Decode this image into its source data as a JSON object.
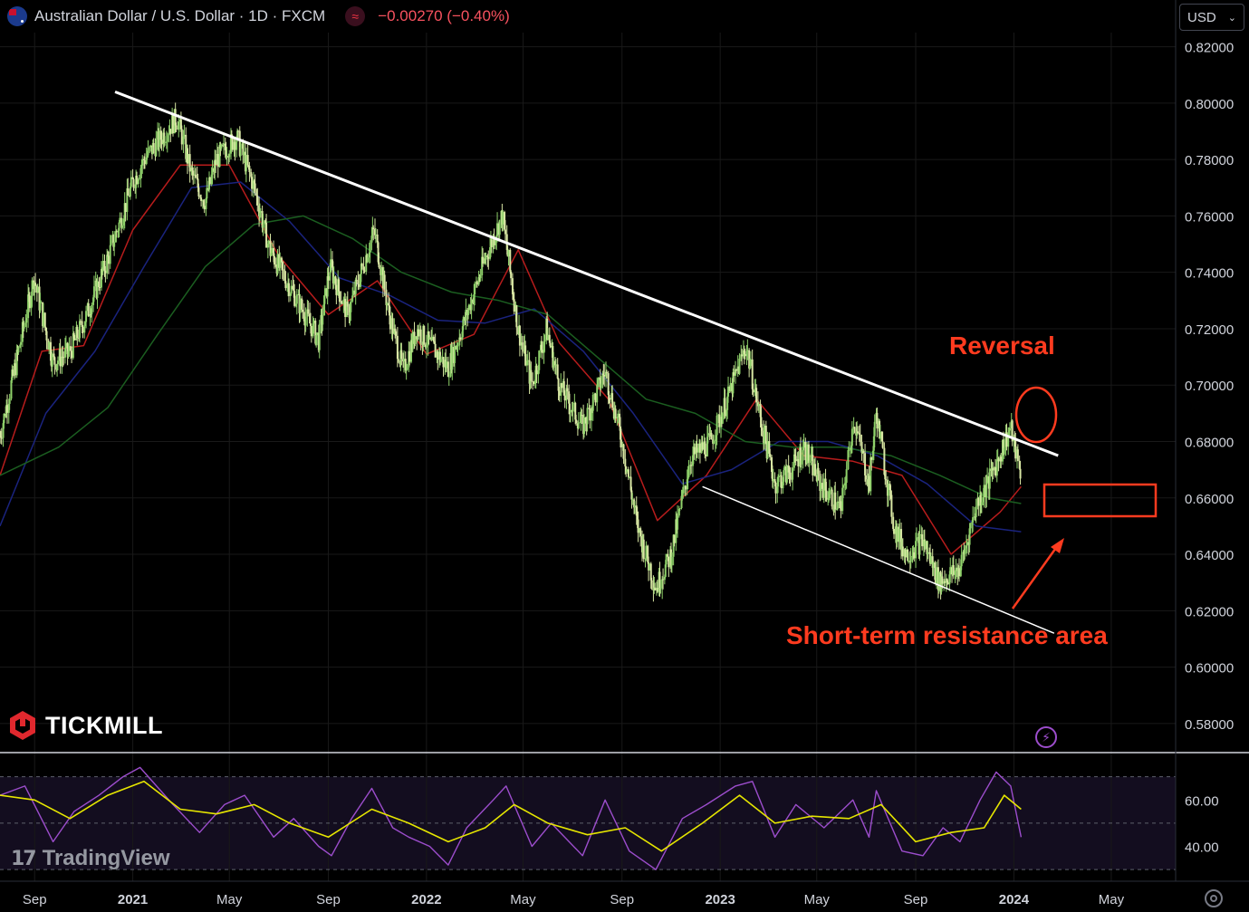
{
  "header": {
    "symbol_title": "Australian Dollar / U.S. Dollar · 1D · FXCM",
    "change": "−0.00270 (−0.40%)",
    "currency": "USD",
    "indicator_icon": "waves-icon",
    "flag_icon": "australia-flag-icon"
  },
  "branding": {
    "broker": "TICKMILL",
    "platform": "TradingView"
  },
  "annotations": {
    "reversal": "Reversal",
    "resistance": "Short-term resistance area"
  },
  "colors": {
    "background": "#000000",
    "candles": "#d9e7a4",
    "candle_alt": "#8fd16a",
    "ma_fast": "#b71c1c",
    "ma_mid": "#1a237e",
    "ma_slow": "#1b5e20",
    "rsi_line": "#9c4dcc",
    "rsi_signal": "#e6e600",
    "annotation": "#ff3b1f",
    "trendline": "#ffffff"
  },
  "chart_data": [
    {
      "type": "line",
      "ylim": [
        0.57,
        0.825
      ],
      "yticks": [
        "0.82000",
        "0.80000",
        "0.78000",
        "0.76000",
        "0.74000",
        "0.72000",
        "0.70000",
        "0.68000",
        "0.66000",
        "0.64000",
        "0.62000",
        "0.60000",
        "0.58000"
      ],
      "ytick_values": [
        0.82,
        0.8,
        0.78,
        0.76,
        0.74,
        0.72,
        0.7,
        0.68,
        0.66,
        0.64,
        0.62,
        0.6,
        0.58
      ],
      "xticks": [
        "Sep",
        "2021",
        "May",
        "Sep",
        "2022",
        "May",
        "Sep",
        "2023",
        "May",
        "Sep",
        "2024",
        "May"
      ],
      "xtick_dates": [
        "2020-09-01",
        "2021-01-01",
        "2021-05-01",
        "2021-09-01",
        "2022-01-01",
        "2022-05-01",
        "2022-09-01",
        "2023-01-01",
        "2023-05-01",
        "2023-09-01",
        "2024-01-01",
        "2024-05-01"
      ],
      "x_range": [
        "2020-07-20",
        "2024-07-20"
      ],
      "series": [
        {
          "role": "price",
          "x": [
            "2020-07-20",
            "2020-08-15",
            "2020-08-31",
            "2020-09-24",
            "2020-10-15",
            "2020-11-05",
            "2020-12-01",
            "2020-12-31",
            "2021-01-15",
            "2021-02-25",
            "2021-03-15",
            "2021-04-01",
            "2021-04-15",
            "2021-05-10",
            "2021-06-01",
            "2021-06-20",
            "2021-07-15",
            "2021-08-20",
            "2021-09-03",
            "2021-09-25",
            "2021-10-28",
            "2021-11-15",
            "2021-12-03",
            "2021-12-20",
            "2022-01-12",
            "2022-01-28",
            "2022-02-20",
            "2022-03-15",
            "2022-04-05",
            "2022-04-25",
            "2022-05-12",
            "2022-05-30",
            "2022-06-15",
            "2022-07-14",
            "2022-08-11",
            "2022-09-01",
            "2022-09-20",
            "2022-10-13",
            "2022-11-01",
            "2022-11-25",
            "2022-12-20",
            "2023-01-10",
            "2023-02-02",
            "2023-02-20",
            "2023-03-10",
            "2023-03-31",
            "2023-04-15",
            "2023-05-05",
            "2023-05-31",
            "2023-06-16",
            "2023-07-05",
            "2023-07-14",
            "2023-08-05",
            "2023-08-20",
            "2023-09-10",
            "2023-09-30",
            "2023-10-26",
            "2023-11-15",
            "2023-12-01",
            "2023-12-28",
            "2024-01-10"
          ],
          "y": [
            0.682,
            0.716,
            0.738,
            0.708,
            0.712,
            0.725,
            0.745,
            0.771,
            0.78,
            0.795,
            0.775,
            0.765,
            0.78,
            0.788,
            0.77,
            0.748,
            0.735,
            0.716,
            0.742,
            0.725,
            0.755,
            0.726,
            0.705,
            0.72,
            0.712,
            0.706,
            0.725,
            0.745,
            0.76,
            0.72,
            0.7,
            0.72,
            0.7,
            0.685,
            0.705,
            0.68,
            0.65,
            0.628,
            0.64,
            0.674,
            0.68,
            0.695,
            0.714,
            0.688,
            0.665,
            0.67,
            0.678,
            0.665,
            0.656,
            0.688,
            0.665,
            0.69,
            0.65,
            0.64,
            0.645,
            0.63,
            0.635,
            0.657,
            0.666,
            0.685,
            0.667
          ]
        },
        {
          "role": "ma_fast",
          "x": [
            "2020-07-20",
            "2020-09-10",
            "2020-11-01",
            "2021-01-01",
            "2021-03-01",
            "2021-05-01",
            "2021-07-01",
            "2021-09-01",
            "2021-11-01",
            "2022-01-01",
            "2022-03-01",
            "2022-04-25",
            "2022-06-15",
            "2022-08-15",
            "2022-10-15",
            "2022-12-15",
            "2023-02-15",
            "2023-04-15",
            "2023-06-15",
            "2023-08-15",
            "2023-10-15",
            "2023-12-15",
            "2024-01-10"
          ],
          "y": [
            0.668,
            0.712,
            0.714,
            0.755,
            0.778,
            0.778,
            0.746,
            0.725,
            0.737,
            0.711,
            0.718,
            0.748,
            0.715,
            0.695,
            0.652,
            0.668,
            0.695,
            0.675,
            0.673,
            0.668,
            0.64,
            0.655,
            0.664
          ]
        },
        {
          "role": "ma_mid",
          "x": [
            "2020-07-20",
            "2020-09-15",
            "2020-11-15",
            "2021-01-15",
            "2021-03-15",
            "2021-05-15",
            "2021-07-15",
            "2021-09-15",
            "2021-11-15",
            "2022-01-15",
            "2022-03-15",
            "2022-05-15",
            "2022-07-15",
            "2022-09-15",
            "2022-11-15",
            "2023-01-15",
            "2023-03-15",
            "2023-05-15",
            "2023-07-15",
            "2023-09-15",
            "2023-11-15",
            "2024-01-10"
          ],
          "y": [
            0.65,
            0.69,
            0.712,
            0.742,
            0.77,
            0.772,
            0.758,
            0.738,
            0.732,
            0.723,
            0.722,
            0.727,
            0.712,
            0.69,
            0.665,
            0.67,
            0.68,
            0.68,
            0.675,
            0.665,
            0.65,
            0.648
          ]
        },
        {
          "role": "ma_slow",
          "x": [
            "2020-07-20",
            "2020-10-01",
            "2020-12-01",
            "2021-02-01",
            "2021-04-01",
            "2021-06-01",
            "2021-08-01",
            "2021-10-01",
            "2021-12-01",
            "2022-02-01",
            "2022-04-01",
            "2022-06-01",
            "2022-08-01",
            "2022-10-01",
            "2022-12-01",
            "2023-02-01",
            "2023-04-01",
            "2023-06-01",
            "2023-08-01",
            "2023-10-01",
            "2023-12-01",
            "2024-01-10"
          ],
          "y": [
            0.668,
            0.678,
            0.692,
            0.718,
            0.742,
            0.757,
            0.76,
            0.752,
            0.74,
            0.733,
            0.73,
            0.725,
            0.71,
            0.695,
            0.69,
            0.68,
            0.678,
            0.678,
            0.675,
            0.668,
            0.66,
            0.658
          ]
        }
      ],
      "trendlines": [
        {
          "from": [
            "2020-12-10",
            0.804
          ],
          "to": [
            "2024-02-25",
            0.675
          ],
          "color": "#ffffff"
        },
        {
          "from": [
            "2022-12-10",
            0.664
          ],
          "to": [
            "2024-02-20",
            0.612
          ],
          "color": "#ffffff"
        }
      ]
    },
    {
      "type": "line",
      "ylim": [
        25,
        80
      ],
      "yticks": [
        "60.00",
        "40.00"
      ],
      "ytick_values": [
        60,
        40
      ],
      "levels": [
        70,
        50,
        30
      ],
      "series": [
        {
          "role": "rsi",
          "x": [
            "2020-07-20",
            "2020-08-20",
            "2020-09-24",
            "2020-10-20",
            "2020-11-20",
            "2020-12-20",
            "2021-01-10",
            "2021-02-20",
            "2021-03-25",
            "2021-04-25",
            "2021-05-20",
            "2021-06-25",
            "2021-07-20",
            "2021-08-20",
            "2021-09-05",
            "2021-09-30",
            "2021-10-25",
            "2021-11-20",
            "2021-12-10",
            "2022-01-05",
            "2022-01-28",
            "2022-02-20",
            "2022-03-25",
            "2022-04-10",
            "2022-05-12",
            "2022-06-05",
            "2022-07-14",
            "2022-08-11",
            "2022-09-10",
            "2022-10-13",
            "2022-11-15",
            "2022-12-15",
            "2023-01-20",
            "2023-02-10",
            "2023-03-10",
            "2023-04-05",
            "2023-05-10",
            "2023-06-15",
            "2023-07-05",
            "2023-07-14",
            "2023-08-15",
            "2023-09-10",
            "2023-10-05",
            "2023-10-26",
            "2023-11-20",
            "2023-12-10",
            "2023-12-28",
            "2024-01-10"
          ],
          "y": [
            62,
            66,
            42,
            55,
            62,
            70,
            74,
            58,
            46,
            58,
            62,
            44,
            52,
            40,
            36,
            52,
            65,
            48,
            44,
            40,
            32,
            48,
            60,
            66,
            40,
            50,
            36,
            60,
            38,
            30,
            52,
            58,
            66,
            68,
            44,
            58,
            48,
            60,
            44,
            64,
            38,
            36,
            48,
            42,
            60,
            72,
            66,
            44
          ]
        },
        {
          "role": "rsi_signal",
          "x": [
            "2020-07-20",
            "2020-09-01",
            "2020-10-15",
            "2020-12-01",
            "2021-01-15",
            "2021-03-01",
            "2021-04-15",
            "2021-06-01",
            "2021-07-15",
            "2021-09-01",
            "2021-10-25",
            "2021-12-10",
            "2022-01-28",
            "2022-03-15",
            "2022-04-20",
            "2022-06-01",
            "2022-07-20",
            "2022-09-05",
            "2022-10-20",
            "2022-12-10",
            "2023-01-25",
            "2023-03-10",
            "2023-04-25",
            "2023-06-10",
            "2023-07-20",
            "2023-09-01",
            "2023-10-15",
            "2023-11-25",
            "2023-12-20",
            "2024-01-10"
          ],
          "y": [
            62,
            60,
            52,
            62,
            68,
            56,
            54,
            58,
            50,
            44,
            56,
            50,
            42,
            48,
            58,
            50,
            45,
            48,
            38,
            50,
            62,
            50,
            53,
            52,
            58,
            42,
            46,
            48,
            62,
            56
          ]
        }
      ]
    }
  ]
}
